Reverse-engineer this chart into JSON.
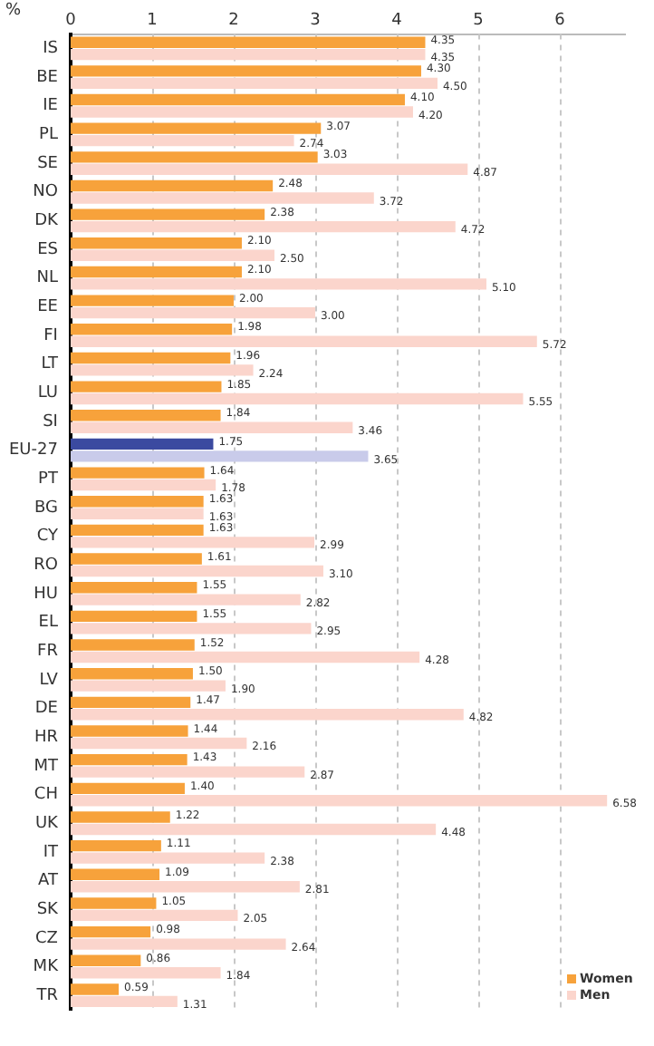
{
  "chart_data": {
    "type": "bar",
    "orientation": "horizontal",
    "xlabel": "%",
    "categories": [
      "IS",
      "BE",
      "IE",
      "PL",
      "SE",
      "NO",
      "DK",
      "ES",
      "NL",
      "EE",
      "FI",
      "LT",
      "LU",
      "SI",
      "EU-27",
      "PT",
      "BG",
      "CY",
      "RO",
      "HU",
      "EL",
      "FR",
      "LV",
      "DE",
      "HR",
      "MT",
      "CH",
      "UK",
      "IT",
      "AT",
      "SK",
      "CZ",
      "MK",
      "TR"
    ],
    "series": [
      {
        "name": "Women",
        "color": "#f7a23b",
        "colors": [
          "#f7a23b",
          "#f7a23b",
          "#f7a23b",
          "#f7a23b",
          "#f7a23b",
          "#f7a23b",
          "#f7a23b",
          "#f7a23b",
          "#f7a23b",
          "#f7a23b",
          "#f7a23b",
          "#f7a23b",
          "#f7a23b",
          "#f7a23b",
          "#3b4aa0",
          "#f7a23b",
          "#f7a23b",
          "#f7a23b",
          "#f7a23b",
          "#f7a23b",
          "#f7a23b",
          "#f7a23b",
          "#f7a23b",
          "#f7a23b",
          "#f7a23b",
          "#f7a23b",
          "#f7a23b",
          "#f7a23b",
          "#f7a23b",
          "#f7a23b",
          "#f7a23b",
          "#f7a23b",
          "#f7a23b",
          "#f7a23b"
        ],
        "values": [
          4.35,
          4.3,
          4.1,
          3.07,
          3.03,
          2.48,
          2.38,
          2.1,
          2.1,
          2.0,
          1.98,
          1.96,
          1.85,
          1.84,
          1.75,
          1.64,
          1.63,
          1.63,
          1.61,
          1.55,
          1.55,
          1.52,
          1.5,
          1.47,
          1.44,
          1.43,
          1.4,
          1.22,
          1.11,
          1.09,
          1.05,
          0.98,
          0.86,
          0.59
        ],
        "value_labels": [
          "4.35",
          "4.30",
          "4.10",
          "3.07",
          "3.03",
          "2.48",
          "2.38",
          "2.10",
          "2.10",
          "2.00",
          "1.98",
          "1.96",
          "1.85",
          "1.84",
          "1.75",
          "1.64",
          "1.63",
          "1.63",
          "1.61",
          "1.55",
          "1.55",
          "1.52",
          "1.50",
          "1.47",
          "1.44",
          "1.43",
          "1.40",
          "1.22",
          "1.11",
          "1.09",
          "1.05",
          "0.98",
          "0.86",
          "0.59"
        ]
      },
      {
        "name": "Men",
        "color": "#fbd5cc",
        "colors": [
          "#fbd5cc",
          "#fbd5cc",
          "#fbd5cc",
          "#fbd5cc",
          "#fbd5cc",
          "#fbd5cc",
          "#fbd5cc",
          "#fbd5cc",
          "#fbd5cc",
          "#fbd5cc",
          "#fbd5cc",
          "#fbd5cc",
          "#fbd5cc",
          "#fbd5cc",
          "#c9cbea",
          "#fbd5cc",
          "#fbd5cc",
          "#fbd5cc",
          "#fbd5cc",
          "#fbd5cc",
          "#fbd5cc",
          "#fbd5cc",
          "#fbd5cc",
          "#fbd5cc",
          "#fbd5cc",
          "#fbd5cc",
          "#fbd5cc",
          "#fbd5cc",
          "#fbd5cc",
          "#fbd5cc",
          "#fbd5cc",
          "#fbd5cc",
          "#fbd5cc",
          "#fbd5cc"
        ],
        "values": [
          4.35,
          4.5,
          4.2,
          2.74,
          4.87,
          3.72,
          4.72,
          2.5,
          5.1,
          3.0,
          5.72,
          2.24,
          5.55,
          3.46,
          3.65,
          1.78,
          1.63,
          2.99,
          3.1,
          2.82,
          2.95,
          4.28,
          1.9,
          4.82,
          2.16,
          2.87,
          6.58,
          4.48,
          2.38,
          2.81,
          2.05,
          2.64,
          1.84,
          1.31
        ],
        "value_labels": [
          "4.35",
          "4.50",
          "4.20",
          "2.74",
          "4.87",
          "3.72",
          "4.72",
          "2.50",
          "5.10",
          "3.00",
          "5.72",
          "2.24",
          "5.55",
          "3.46",
          "3.65",
          "1.78",
          "1.63",
          "2.99",
          "3.10",
          "2.82",
          "2.95",
          "4.28",
          "1.90",
          "4.82",
          "2.16",
          "2.87",
          "6.58",
          "4.48",
          "2.38",
          "2.81",
          "2.05",
          "2.64",
          "1.84",
          "1.31"
        ]
      }
    ],
    "xlim": [
      0,
      6.8
    ],
    "xticks": [
      0,
      1,
      2,
      3,
      4,
      5,
      6
    ],
    "grid": "x",
    "legend": "bottom right"
  }
}
